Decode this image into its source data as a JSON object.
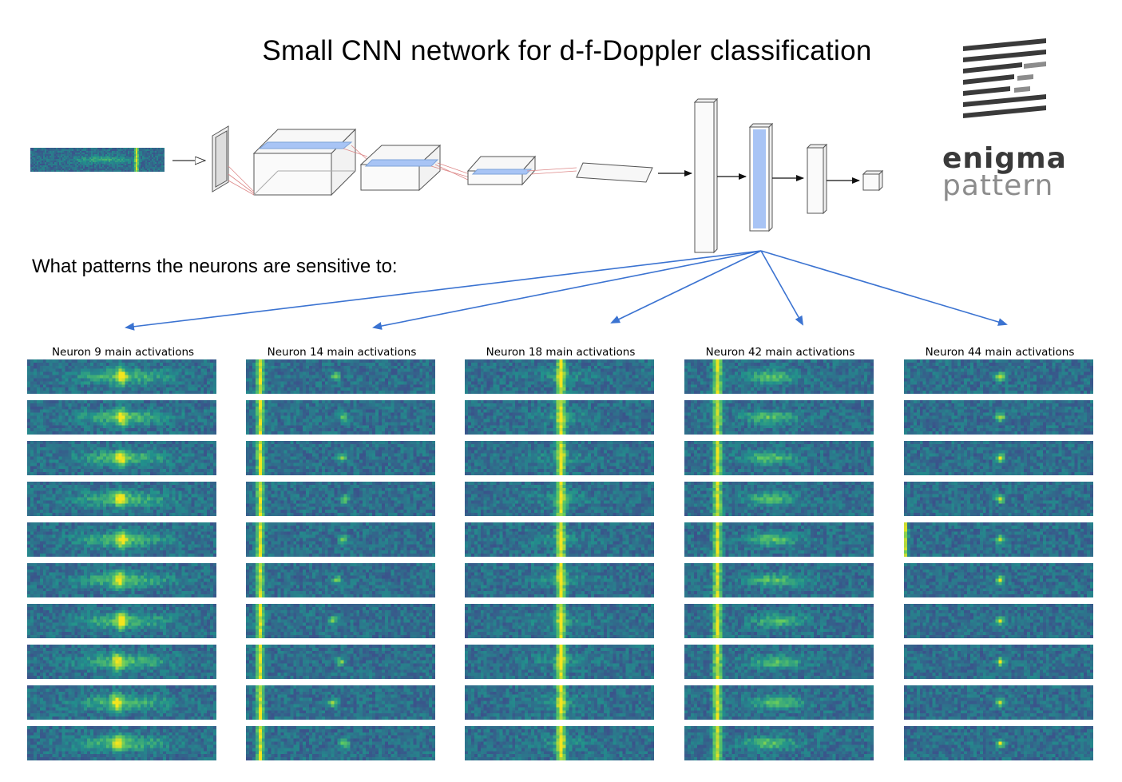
{
  "title": "Small CNN network for d-f-Doppler classification",
  "subtitle": "What patterns the neurons are sensitive to:",
  "logo": {
    "word1": "enigma",
    "word2": "pattern",
    "dark": "#3a3a3a",
    "light": "#8c8c8c"
  },
  "colors": {
    "arrow": "#3b73d1",
    "highlight": "#a8c4f5",
    "layer_stroke": "#555555",
    "viridis_low": "#3b2a7a",
    "viridis_high": "#f3e51e"
  },
  "neurons": [
    {
      "label": "Neuron 9 main activations",
      "pattern": "center-band"
    },
    {
      "label": "Neuron 14 main activations",
      "pattern": "left-line-dot"
    },
    {
      "label": "Neuron 18 main activations",
      "pattern": "center-line"
    },
    {
      "label": "Neuron 42 main activations",
      "pattern": "left-line-band"
    },
    {
      "label": "Neuron 44 main activations",
      "pattern": "center-dot"
    }
  ],
  "rows_per_neuron": 10
}
